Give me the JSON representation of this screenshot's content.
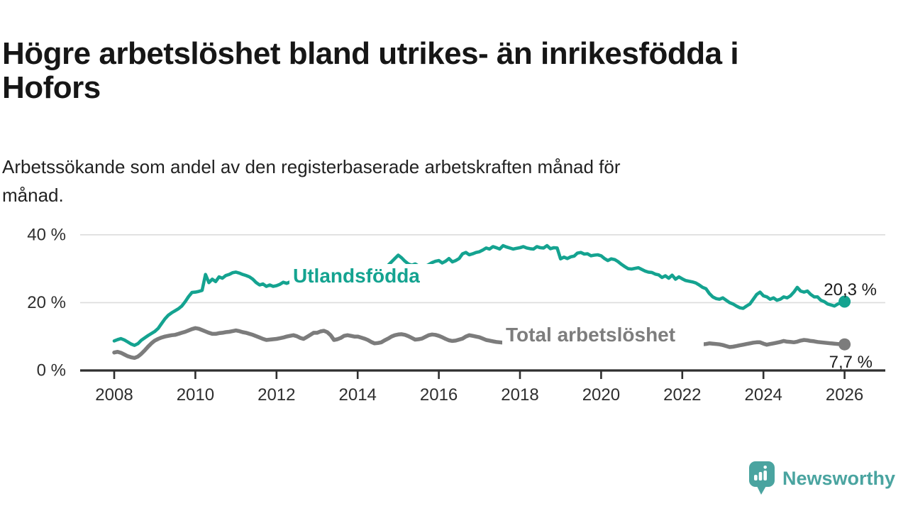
{
  "header": {
    "title": "Högre arbetslöshet bland utrikes- än inrikesfödda i Hofors",
    "subtitle": "Arbetssökande som andel av den registerbaserade arbetskraften månad för månad."
  },
  "footer": {
    "brand": "Newsworthy",
    "logo_icon": "newsworthy-speech-bubble-bar-chart-icon",
    "brand_color": "#4aa4a0"
  },
  "chart_data": {
    "type": "line",
    "x_start": "2008-01",
    "x_end": "2026-01",
    "frequency": "monthly",
    "x_ticks": [
      "2008",
      "2010",
      "2012",
      "2014",
      "2016",
      "2018",
      "2020",
      "2022",
      "2024",
      "2026"
    ],
    "x_tick_years": [
      2008,
      2010,
      2012,
      2014,
      2016,
      2018,
      2020,
      2022,
      2024,
      2026
    ],
    "y_ticks": [
      {
        "value": 0,
        "label": "0 %"
      },
      {
        "value": 20,
        "label": "20 %"
      },
      {
        "value": 40,
        "label": "40 %"
      }
    ],
    "ylim": [
      0,
      44
    ],
    "grid": "horizontal",
    "legend": "inline-labels-on-line",
    "colors": {
      "grid": "#dcdcdc",
      "axis": "#2f2f2f",
      "tick_text": "#2e2e2e",
      "value_label_text": "#1c1c1c"
    },
    "series": [
      {
        "name": "Utlandsfödda",
        "color": "#14a390",
        "end_label": "20,3 %",
        "end_value": 20.3,
        "values": [
          8.7,
          9.1,
          9.4,
          9.0,
          8.4,
          7.8,
          7.4,
          7.9,
          8.9,
          9.6,
          10.3,
          10.9,
          11.5,
          12.4,
          13.8,
          15.2,
          16.3,
          17.0,
          17.6,
          18.2,
          19.0,
          20.3,
          21.8,
          23.0,
          23.1,
          23.3,
          23.6,
          28.3,
          25.9,
          26.9,
          26.2,
          27.6,
          27.2,
          28.0,
          28.3,
          28.8,
          29.0,
          28.7,
          28.3,
          28.0,
          27.6,
          26.9,
          25.9,
          25.2,
          25.5,
          24.8,
          25.2,
          24.8,
          25.0,
          25.4,
          26.0,
          25.7,
          26.1,
          26.3,
          26.5,
          26.7,
          26.9,
          27.1,
          27.3,
          27.6,
          27.8,
          28.0,
          28.2,
          28.4,
          28.6,
          28.8,
          28.9,
          29.1,
          29.2,
          29.4,
          29.5,
          29.7,
          29.8,
          29.9,
          30.0,
          30.1,
          30.2,
          30.3,
          30.2,
          30.4,
          30.6,
          31.0,
          32.0,
          33.0,
          34.0,
          33.2,
          32.2,
          31.4,
          31.0,
          31.4,
          30.8,
          30.4,
          30.7,
          31.2,
          31.8,
          32.2,
          32.4,
          31.7,
          32.2,
          33.0,
          32.0,
          32.4,
          33.0,
          34.4,
          34.8,
          34.1,
          34.4,
          34.8,
          35.0,
          35.5,
          36.1,
          35.8,
          36.5,
          36.2,
          35.8,
          36.8,
          36.4,
          36.1,
          35.8,
          36.0,
          36.2,
          36.5,
          36.1,
          35.9,
          35.8,
          36.5,
          36.2,
          36.1,
          36.8,
          35.9,
          36.2,
          36.1,
          32.9,
          33.4,
          33.0,
          33.5,
          33.7,
          34.6,
          34.8,
          34.3,
          34.4,
          33.8,
          34.0,
          34.1,
          33.8,
          33.0,
          32.4,
          32.9,
          32.7,
          32.1,
          31.3,
          30.6,
          30.0,
          29.9,
          30.1,
          30.3,
          29.8,
          29.3,
          29.0,
          28.9,
          28.4,
          28.2,
          27.4,
          27.9,
          27.2,
          28.1,
          26.9,
          27.6,
          27.0,
          26.5,
          26.3,
          26.1,
          25.8,
          25.2,
          24.5,
          24.1,
          22.7,
          21.7,
          21.2,
          21.0,
          21.4,
          20.7,
          20.0,
          19.6,
          19.0,
          18.5,
          18.3,
          19.0,
          19.6,
          21.0,
          22.4,
          23.1,
          22.0,
          21.7,
          21.0,
          21.4,
          20.7,
          21.0,
          21.7,
          21.4,
          22.0,
          23.1,
          24.5,
          23.4,
          23.1,
          23.4,
          22.4,
          21.7,
          21.7,
          20.7,
          20.3,
          19.6,
          19.3,
          19.0,
          19.6,
          20.0,
          20.3
        ]
      },
      {
        "name": "Total arbetslöshet",
        "color": "#7c7c7c",
        "label_color": "#7d7d7d",
        "end_label": "7,7 %",
        "end_value": 7.7,
        "values": [
          5.3,
          5.5,
          5.2,
          4.7,
          4.2,
          3.9,
          3.7,
          4.1,
          4.9,
          5.9,
          7.0,
          8.0,
          8.8,
          9.3,
          9.7,
          10.0,
          10.2,
          10.4,
          10.5,
          10.8,
          11.1,
          11.4,
          11.8,
          12.2,
          12.5,
          12.3,
          11.9,
          11.5,
          11.1,
          10.8,
          10.8,
          11.0,
          11.1,
          11.3,
          11.4,
          11.6,
          11.8,
          11.6,
          11.3,
          11.1,
          10.8,
          10.5,
          10.1,
          9.7,
          9.3,
          9.0,
          9.1,
          9.2,
          9.3,
          9.5,
          9.7,
          10.0,
          10.2,
          10.4,
          10.1,
          9.6,
          9.3,
          9.9,
          10.5,
          11.1,
          11.1,
          11.5,
          11.7,
          11.3,
          10.4,
          9.0,
          9.2,
          9.6,
          10.2,
          10.4,
          10.2,
          10.0,
          10.0,
          9.7,
          9.4,
          9.0,
          8.4,
          8.0,
          8.1,
          8.3,
          8.9,
          9.4,
          10.0,
          10.4,
          10.6,
          10.7,
          10.5,
          10.1,
          9.6,
          9.1,
          9.2,
          9.4,
          9.9,
          10.4,
          10.6,
          10.5,
          10.2,
          9.8,
          9.3,
          8.9,
          8.7,
          8.8,
          9.1,
          9.4,
          10.0,
          10.4,
          10.2,
          10.0,
          9.8,
          9.4,
          9.0,
          8.8,
          8.6,
          8.4,
          8.3,
          8.2,
          8.1,
          8.2,
          8.3,
          8.4,
          8.5,
          8.6,
          8.7,
          8.8,
          8.8,
          8.7,
          8.6,
          8.5,
          8.5,
          8.6,
          8.7,
          8.8,
          8.9,
          9.0,
          9.0,
          8.9,
          8.8,
          8.7,
          8.6,
          8.6,
          8.7,
          8.8,
          8.9,
          9.0,
          9.1,
          9.2,
          9.4,
          9.6,
          9.6,
          9.5,
          9.4,
          9.3,
          9.2,
          9.1,
          9.0,
          8.9,
          8.8,
          8.7,
          8.6,
          8.5,
          8.4,
          8.3,
          8.2,
          8.1,
          8.0,
          7.9,
          7.9,
          7.8,
          7.8,
          7.7,
          7.7,
          7.6,
          7.6,
          7.6,
          7.7,
          7.8,
          8.0,
          7.9,
          7.8,
          7.7,
          7.5,
          7.2,
          6.9,
          7.0,
          7.2,
          7.4,
          7.6,
          7.8,
          8.0,
          8.2,
          8.3,
          8.3,
          7.9,
          7.6,
          7.8,
          8.0,
          8.2,
          8.4,
          8.7,
          8.5,
          8.4,
          8.3,
          8.5,
          8.8,
          9.0,
          8.9,
          8.7,
          8.6,
          8.4,
          8.3,
          8.2,
          8.1,
          8.0,
          7.9,
          7.8,
          7.8,
          7.7
        ]
      }
    ]
  }
}
